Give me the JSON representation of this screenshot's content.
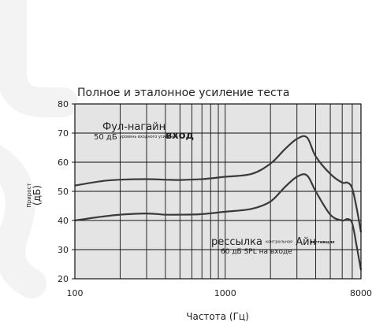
{
  "chart_data": {
    "type": "line",
    "title": "Полное и эталонное усиление теста",
    "ylabel_small": "Прирост",
    "ylabel": "(дБ)",
    "xlabel": "Частота (Гц)",
    "x_scale": "log",
    "xlim": [
      100,
      8000
    ],
    "ylim": [
      20,
      80
    ],
    "x_ticks": [
      "100",
      "1000",
      "8000"
    ],
    "y_ticks": [
      "20",
      "30",
      "40",
      "50",
      "60",
      "70",
      "80"
    ],
    "grid": true,
    "colors": {
      "plot_background": "#e4e4e4",
      "line": "#3a3a3a",
      "grid": "#111111",
      "watermark": "#f3f3f3"
    },
    "series": [
      {
        "x": [
          100,
          150,
          200,
          300,
          400,
          500,
          700,
          1000,
          1500,
          2000,
          2500,
          3000,
          3500,
          4000,
          5000,
          6000,
          6500,
          7000,
          7500,
          8000
        ],
        "y": [
          52,
          53.5,
          54,
          54.2,
          54,
          53.9,
          54.2,
          55,
          56,
          59.5,
          64.5,
          68,
          68.5,
          62,
          56,
          53,
          53,
          51,
          44,
          36
        ]
      },
      {
        "x": [
          100,
          150,
          200,
          300,
          400,
          500,
          700,
          1000,
          1500,
          2000,
          2500,
          3000,
          3500,
          4000,
          5000,
          6000,
          6500,
          7000,
          7500,
          8000
        ],
        "y": [
          40,
          41.3,
          42,
          42.4,
          42,
          42,
          42.2,
          43,
          44,
          46.5,
          51.5,
          55,
          55.5,
          50,
          42,
          40,
          40.5,
          39,
          31,
          23
        ]
      }
    ],
    "annotations": [
      {
        "line1_a": "Фул",
        "line1_b": "-нагайн",
        "line2_a": "50 дБ",
        "line2_small": "уровень входного усиления",
        "line2_b": "вход"
      },
      {
        "line1_a": "рессылка",
        "line1_small": "контрольная",
        "line1_b": "Айн",
        "line1_c": "поставщик",
        "line2": "60 дБ SPL на входе"
      }
    ]
  }
}
